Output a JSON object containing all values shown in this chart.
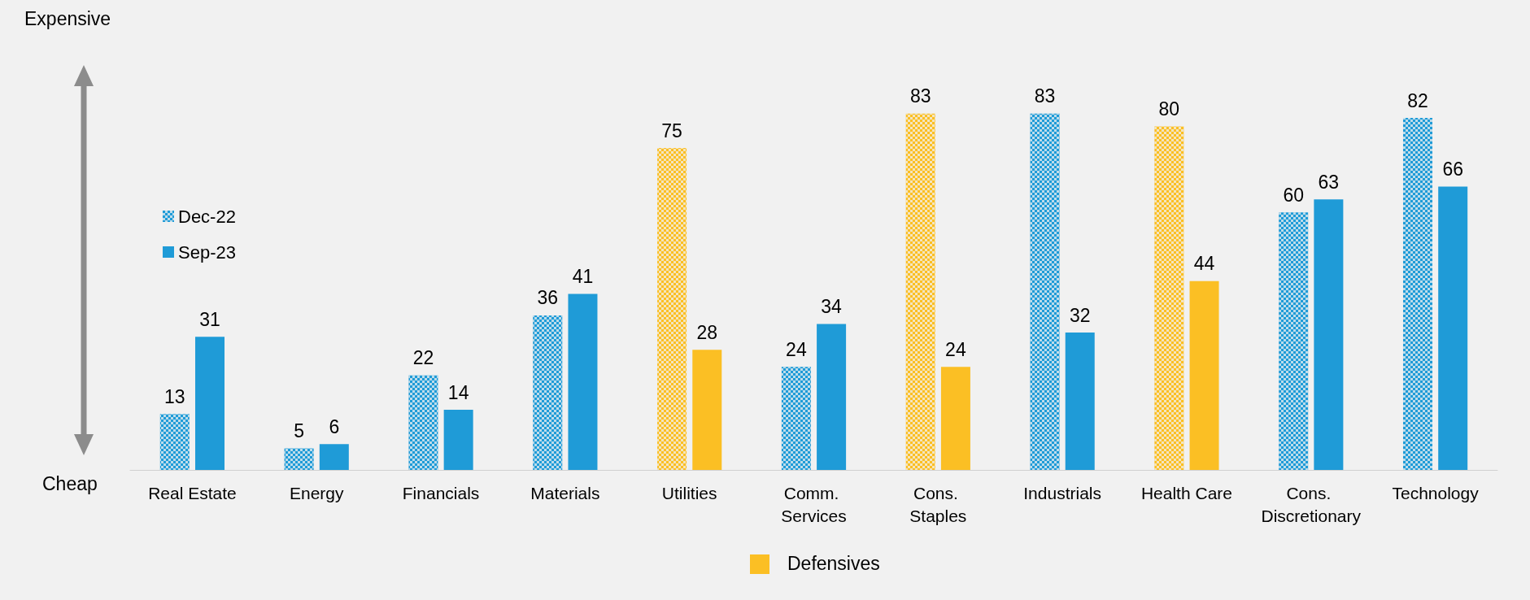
{
  "chart_data": {
    "type": "bar",
    "categories": [
      "Real Estate",
      "Energy",
      "Financials",
      "Materials",
      "Utilities",
      "Comm. Services",
      "Cons. Staples",
      "Industrials",
      "Health Care",
      "Cons. Discretionary",
      "Technology"
    ],
    "series": [
      {
        "name": "Dec-22",
        "color": "#1f9bd7",
        "colors": [
          "#1f9bd7",
          "#1f9bd7",
          "#1f9bd7",
          "#1f9bd7",
          "#fbbf24",
          "#1f9bd7",
          "#fbbf24",
          "#1f9bd7",
          "#fbbf24",
          "#1f9bd7",
          "#1f9bd7"
        ],
        "values": [
          13,
          5,
          22,
          36,
          75,
          24,
          83,
          83,
          80,
          60,
          82
        ]
      },
      {
        "name": "Sep-23",
        "color": "#1f9bd7",
        "colors": [
          "#1f9bd7",
          "#1f9bd7",
          "#1f9bd7",
          "#1f9bd7",
          "#fbbf24",
          "#1f9bd7",
          "#fbbf24",
          "#1f9bd7",
          "#fbbf24",
          "#1f9bd7",
          "#1f9bd7"
        ],
        "values": [
          31,
          6,
          14,
          41,
          28,
          34,
          24,
          32,
          44,
          63,
          66
        ]
      }
    ],
    "data_labels": true,
    "legend": "left",
    "annotations": [
      "Expensive",
      "Cheap",
      "Defensives"
    ]
  }
}
